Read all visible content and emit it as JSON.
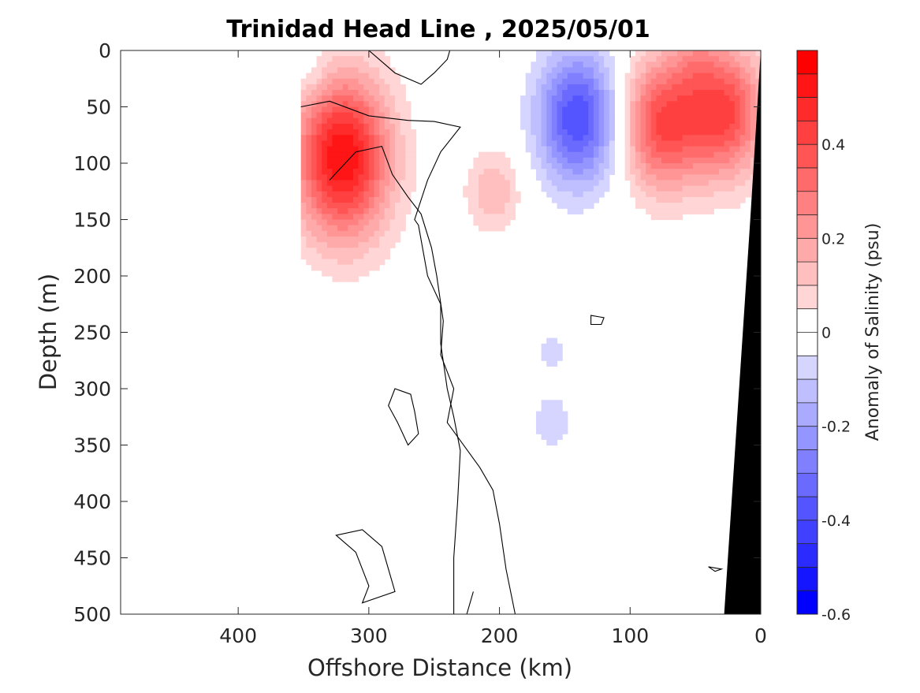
{
  "chart_data": {
    "type": "contour",
    "title": "Trinidad Head Line , 2025/05/01",
    "xlabel": "Offshore Distance (km)",
    "ylabel": "Depth (m)",
    "xlim": [
      490,
      0
    ],
    "ylim": [
      0,
      500
    ],
    "x_reversed": true,
    "y_reversed": true,
    "x_ticks": [
      400,
      300,
      200,
      100,
      0
    ],
    "y_ticks": [
      0,
      50,
      100,
      150,
      200,
      250,
      300,
      350,
      400,
      450,
      500
    ],
    "colorbar": {
      "label": "Anomaly of Salinity (psu)",
      "range": [
        -0.6,
        0.6
      ],
      "level_step": 0.05,
      "ticks": [
        0.4,
        0.2,
        0,
        -0.2,
        -0.4,
        -0.6
      ],
      "tick_labels": [
        "0.4",
        "0.2",
        "0",
        "-0.2",
        "-0.4",
        "-0.6"
      ]
    },
    "colors": {
      "positive": "#ff0000",
      "negative": "#0000ff",
      "zero": "#ffffff",
      "contour_line": "#000000",
      "bathymetry": "#000000"
    },
    "data_coverage_x": [
      352,
      0
    ],
    "features": [
      {
        "type": "max",
        "x": 320,
        "depth": 95,
        "value": 0.55
      },
      {
        "type": "max",
        "x": 205,
        "depth": 125,
        "value": 0.15
      },
      {
        "type": "max",
        "x": 75,
        "depth": 65,
        "value": 0.4
      },
      {
        "type": "max",
        "x": 27,
        "depth": 55,
        "value": 0.4
      },
      {
        "type": "max",
        "x": 50,
        "depth": 8,
        "value": 0.1
      },
      {
        "type": "max",
        "x": 20,
        "depth": 230,
        "value": 0.05
      },
      {
        "type": "min",
        "x": 140,
        "depth": 60,
        "value": -0.4
      },
      {
        "type": "min",
        "x": 160,
        "depth": 330,
        "value": -0.08
      },
      {
        "type": "min",
        "x": 160,
        "depth": 265,
        "value": -0.06
      },
      {
        "type": "min",
        "x": 343,
        "depth": 20,
        "value": -0.06
      },
      {
        "type": "min",
        "x": 346,
        "depth": 230,
        "value": -0.05
      }
    ],
    "zero_contours": [
      [
        [
          352,
          50
        ],
        [
          330,
          45
        ],
        [
          300,
          58
        ],
        [
          270,
          62
        ],
        [
          250,
          63
        ],
        [
          230,
          68
        ],
        [
          245,
          90
        ],
        [
          255,
          115
        ],
        [
          265,
          150
        ],
        [
          262,
          155
        ],
        [
          255,
          200
        ],
        [
          245,
          225
        ],
        [
          245,
          260
        ],
        [
          240,
          300
        ],
        [
          235,
          325
        ],
        [
          230,
          355
        ],
        [
          232,
          400
        ],
        [
          235,
          450
        ],
        [
          235,
          500
        ]
      ],
      [
        [
          188,
          500
        ],
        [
          195,
          460
        ],
        [
          200,
          420
        ],
        [
          205,
          390
        ],
        [
          215,
          370
        ],
        [
          240,
          330
        ],
        [
          235,
          300
        ],
        [
          245,
          270
        ],
        [
          243,
          240
        ],
        [
          248,
          200
        ],
        [
          252,
          175
        ],
        [
          260,
          145
        ],
        [
          270,
          130
        ],
        [
          282,
          110
        ],
        [
          290,
          85
        ],
        [
          310,
          90
        ],
        [
          330,
          115
        ]
      ],
      [
        [
          300,
          0
        ],
        [
          280,
          20
        ],
        [
          260,
          30
        ],
        [
          250,
          20
        ],
        [
          240,
          8
        ],
        [
          238,
          0
        ]
      ],
      [
        [
          225,
          500
        ],
        [
          220,
          480
        ]
      ]
    ],
    "closed_contours": [
      [
        [
          325,
          430
        ],
        [
          310,
          445
        ],
        [
          300,
          475
        ],
        [
          305,
          490
        ],
        [
          280,
          480
        ],
        [
          285,
          460
        ],
        [
          290,
          440
        ],
        [
          305,
          425
        ]
      ],
      [
        [
          280,
          300
        ],
        [
          268,
          305
        ],
        [
          265,
          320
        ],
        [
          262,
          340
        ],
        [
          270,
          350
        ],
        [
          278,
          330
        ],
        [
          285,
          315
        ]
      ],
      [
        [
          130,
          235
        ],
        [
          120,
          237
        ],
        [
          122,
          243
        ],
        [
          130,
          243
        ]
      ],
      [
        [
          40,
          458
        ],
        [
          30,
          460
        ],
        [
          35,
          462
        ]
      ]
    ]
  }
}
